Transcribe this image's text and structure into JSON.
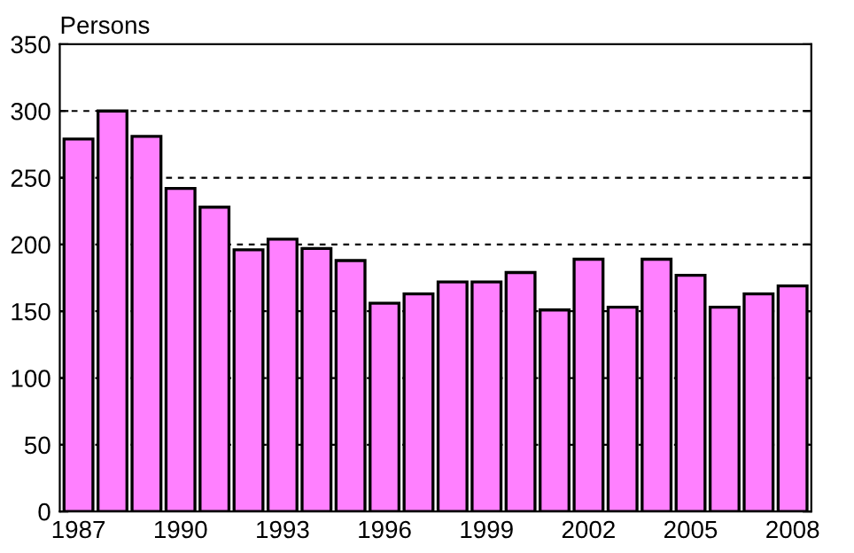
{
  "chart_data": {
    "type": "bar",
    "ylabel": "Persons",
    "categories": [
      "1987",
      null,
      null,
      "1990",
      null,
      null,
      "1993",
      null,
      null,
      "1996",
      null,
      null,
      "1999",
      null,
      null,
      "2002",
      null,
      null,
      "2005",
      null,
      null,
      "2008"
    ],
    "values": [
      279,
      300,
      281,
      242,
      228,
      196,
      204,
      197,
      188,
      156,
      163,
      172,
      172,
      179,
      151,
      189,
      153,
      189,
      177,
      153,
      163,
      169
    ],
    "color": "#ff80ff",
    "ylim": [
      0,
      350
    ],
    "yticks": [
      0,
      50,
      100,
      150,
      200,
      250,
      300,
      350
    ],
    "grid": "y"
  }
}
